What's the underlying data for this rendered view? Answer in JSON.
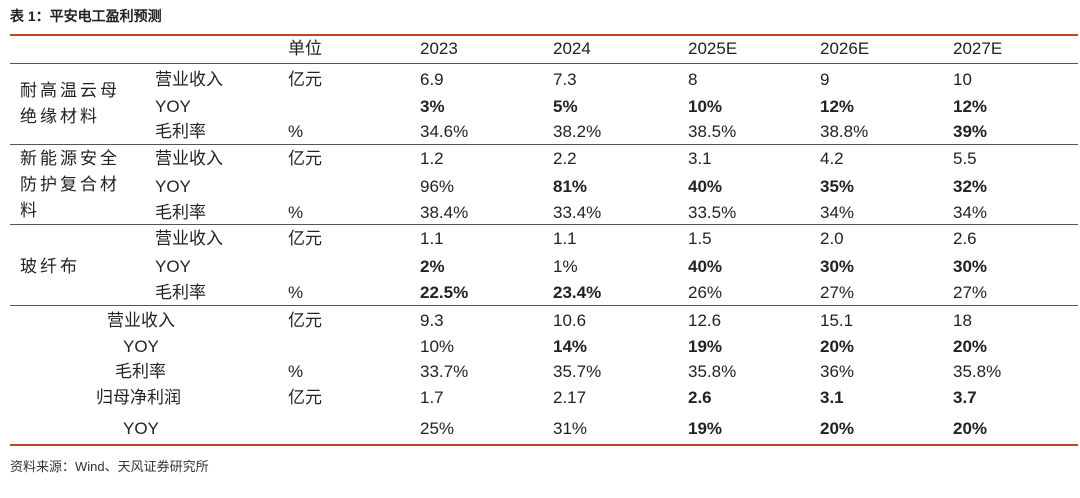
{
  "title": "表 1：平安电工盈利预测",
  "headers": [
    "单位",
    "2023",
    "2024",
    "2025E",
    "2026E",
    "2027E"
  ],
  "categories": {
    "mica": "耐高温云母绝缘材料",
    "newenergy": "新能源安全防护复合材料",
    "glassfiber": "玻纤布"
  },
  "rows": {
    "mica_rev": {
      "label": "营业收入",
      "unit": "亿元",
      "values": [
        "6.9",
        "7.3",
        "8",
        "9",
        "10"
      ]
    },
    "mica_yoy": {
      "label": "YOY",
      "unit": "",
      "values": [
        "3%",
        "5%",
        "10%",
        "12%",
        "12%"
      ]
    },
    "mica_gm": {
      "label": "毛利率",
      "unit": "%",
      "values": [
        "34.6%",
        "38.2%",
        "38.5%",
        "38.8%",
        "39%"
      ]
    },
    "ne_rev": {
      "label": "营业收入",
      "unit": "亿元",
      "values": [
        "1.2",
        "2.2",
        "3.1",
        "4.2",
        "5.5"
      ]
    },
    "ne_yoy": {
      "label": "YOY",
      "unit": "",
      "values": [
        "96%",
        "81%",
        "40%",
        "35%",
        "32%"
      ]
    },
    "ne_gm": {
      "label": "毛利率",
      "unit": "%",
      "values": [
        "38.4%",
        "33.4%",
        "33.5%",
        "34%",
        "34%"
      ]
    },
    "gf_rev": {
      "label": "营业收入",
      "unit": "亿元",
      "values": [
        "1.1",
        "1.1",
        "1.5",
        "2.0",
        "2.6"
      ]
    },
    "gf_yoy": {
      "label": "YOY",
      "unit": "",
      "values": [
        "2%",
        "1%",
        "40%",
        "30%",
        "30%"
      ]
    },
    "gf_gm": {
      "label": "毛利率",
      "unit": "%",
      "values": [
        "22.5%",
        "23.4%",
        "26%",
        "27%",
        "27%"
      ]
    },
    "tot_rev": {
      "label": "营业收入",
      "unit": "亿元",
      "values": [
        "9.3",
        "10.6",
        "12.6",
        "15.1",
        "18"
      ]
    },
    "tot_yoy": {
      "label": "YOY",
      "unit": "",
      "values": [
        "10%",
        "14%",
        "19%",
        "20%",
        "20%"
      ]
    },
    "tot_gm": {
      "label": "毛利率",
      "unit": "%",
      "values": [
        "33.7%",
        "35.7%",
        "35.8%",
        "36%",
        "35.8%"
      ]
    },
    "tot_np": {
      "label": "归母净利润",
      "unit": "亿元",
      "values": [
        "1.7",
        "2.17",
        "2.6",
        "3.1",
        "3.7"
      ]
    },
    "tot_np_yoy": {
      "label": "YOY",
      "unit": "",
      "values": [
        "25%",
        "31%",
        "19%",
        "20%",
        "20%"
      ]
    }
  },
  "source": "资料来源：Wind、天风证券研究所"
}
